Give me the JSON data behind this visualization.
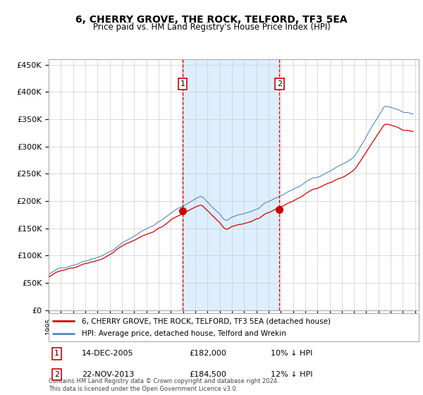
{
  "title": "6, CHERRY GROVE, THE ROCK, TELFORD, TF3 5EA",
  "subtitle": "Price paid vs. HM Land Registry's House Price Index (HPI)",
  "yticks": [
    0,
    50000,
    100000,
    150000,
    200000,
    250000,
    300000,
    350000,
    400000,
    450000
  ],
  "ytick_labels": [
    "£0",
    "£50K",
    "£100K",
    "£150K",
    "£200K",
    "£250K",
    "£300K",
    "£350K",
    "£400K",
    "£450K"
  ],
  "marker1_date": 2005.96,
  "marker1_label": "1",
  "marker1_price": 182000,
  "marker2_date": 2013.9,
  "marker2_label": "2",
  "marker2_price": 184500,
  "line1_color": "#cc0000",
  "line2_color": "#5588bb",
  "shade_color": "#ddeeff",
  "legend_line1": "6, CHERRY GROVE, THE ROCK, TELFORD, TF3 5EA (detached house)",
  "legend_line2": "HPI: Average price, detached house, Telford and Wrekin",
  "footer": "Contains HM Land Registry data © Crown copyright and database right 2024.\nThis data is licensed under the Open Government Licence v3.0.",
  "sale1_date": 2005.96,
  "sale1_price": 182000,
  "sale2_date": 2013.9,
  "sale2_price": 184500
}
